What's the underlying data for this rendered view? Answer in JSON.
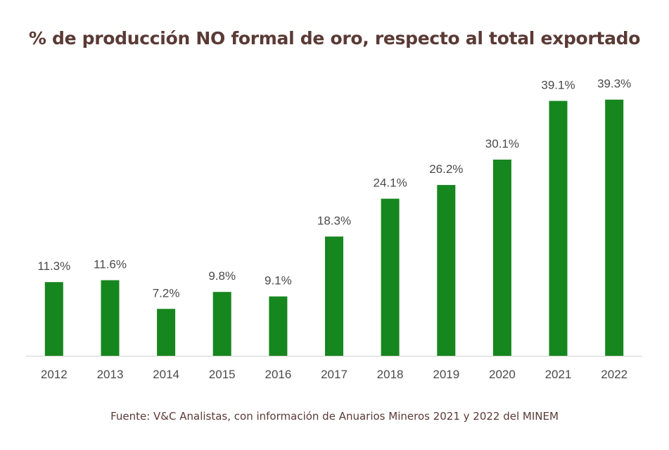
{
  "chart_data": {
    "type": "bar",
    "title": "% de producción NO formal de oro, respecto al total exportado",
    "categories": [
      "2012",
      "2013",
      "2014",
      "2015",
      "2016",
      "2017",
      "2018",
      "2019",
      "2020",
      "2021",
      "2022"
    ],
    "values": [
      11.3,
      11.6,
      7.2,
      9.8,
      9.1,
      18.3,
      24.1,
      26.2,
      30.1,
      39.1,
      39.3
    ],
    "value_labels": [
      "11.3%",
      "11.6%",
      "7.2%",
      "9.8%",
      "9.1%",
      "18.3%",
      "24.1%",
      "26.2%",
      "30.1%",
      "39.1%",
      "39.3%"
    ],
    "xlabel": "",
    "ylabel": "",
    "ylim": [
      0,
      45
    ],
    "grid": false,
    "bar_color": "#16861f",
    "axis_color": "#d0d0d0",
    "source": "Fuente: V&C Analistas, con información de Anuarios Mineros 2021 y 2022 del MINEM"
  }
}
